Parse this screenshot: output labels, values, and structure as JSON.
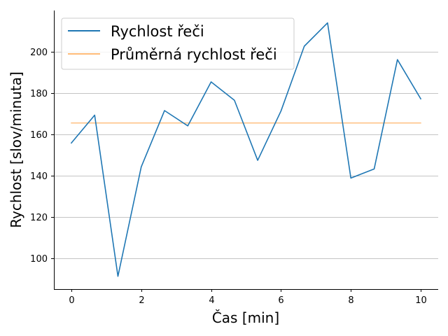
{
  "chart_data": {
    "type": "line",
    "xlabel": "Čas [min]",
    "ylabel": "Rychlost [slov/minuta]",
    "xlim": [
      -0.5,
      10.5
    ],
    "ylim": [
      85,
      220
    ],
    "xticks": [
      0,
      2,
      4,
      6,
      8,
      10
    ],
    "yticks": [
      100,
      120,
      140,
      160,
      180,
      200
    ],
    "grid": "horizontal",
    "legend_position": "top-left",
    "colors": {
      "series": "#1f77b4",
      "average": "#ffbb78",
      "grid": "#b0b0b0",
      "axis": "#000000"
    },
    "series": [
      {
        "name": "Rychlost řeči",
        "x": [
          0,
          0.667,
          1.333,
          2,
          2.667,
          3.333,
          4,
          4.667,
          5.333,
          6,
          6.667,
          7.333,
          8,
          8.667,
          9.333,
          10
        ],
        "y": [
          155.8,
          169.3,
          91.2,
          144.2,
          171.5,
          164.1,
          185.4,
          176.5,
          147.4,
          171.3,
          202.7,
          214.0,
          138.8,
          143.2,
          196.2,
          177.2
        ]
      },
      {
        "name": "Průměrná rychlost řeči",
        "x": [
          0,
          10
        ],
        "y": [
          165.5,
          165.5
        ]
      }
    ]
  }
}
